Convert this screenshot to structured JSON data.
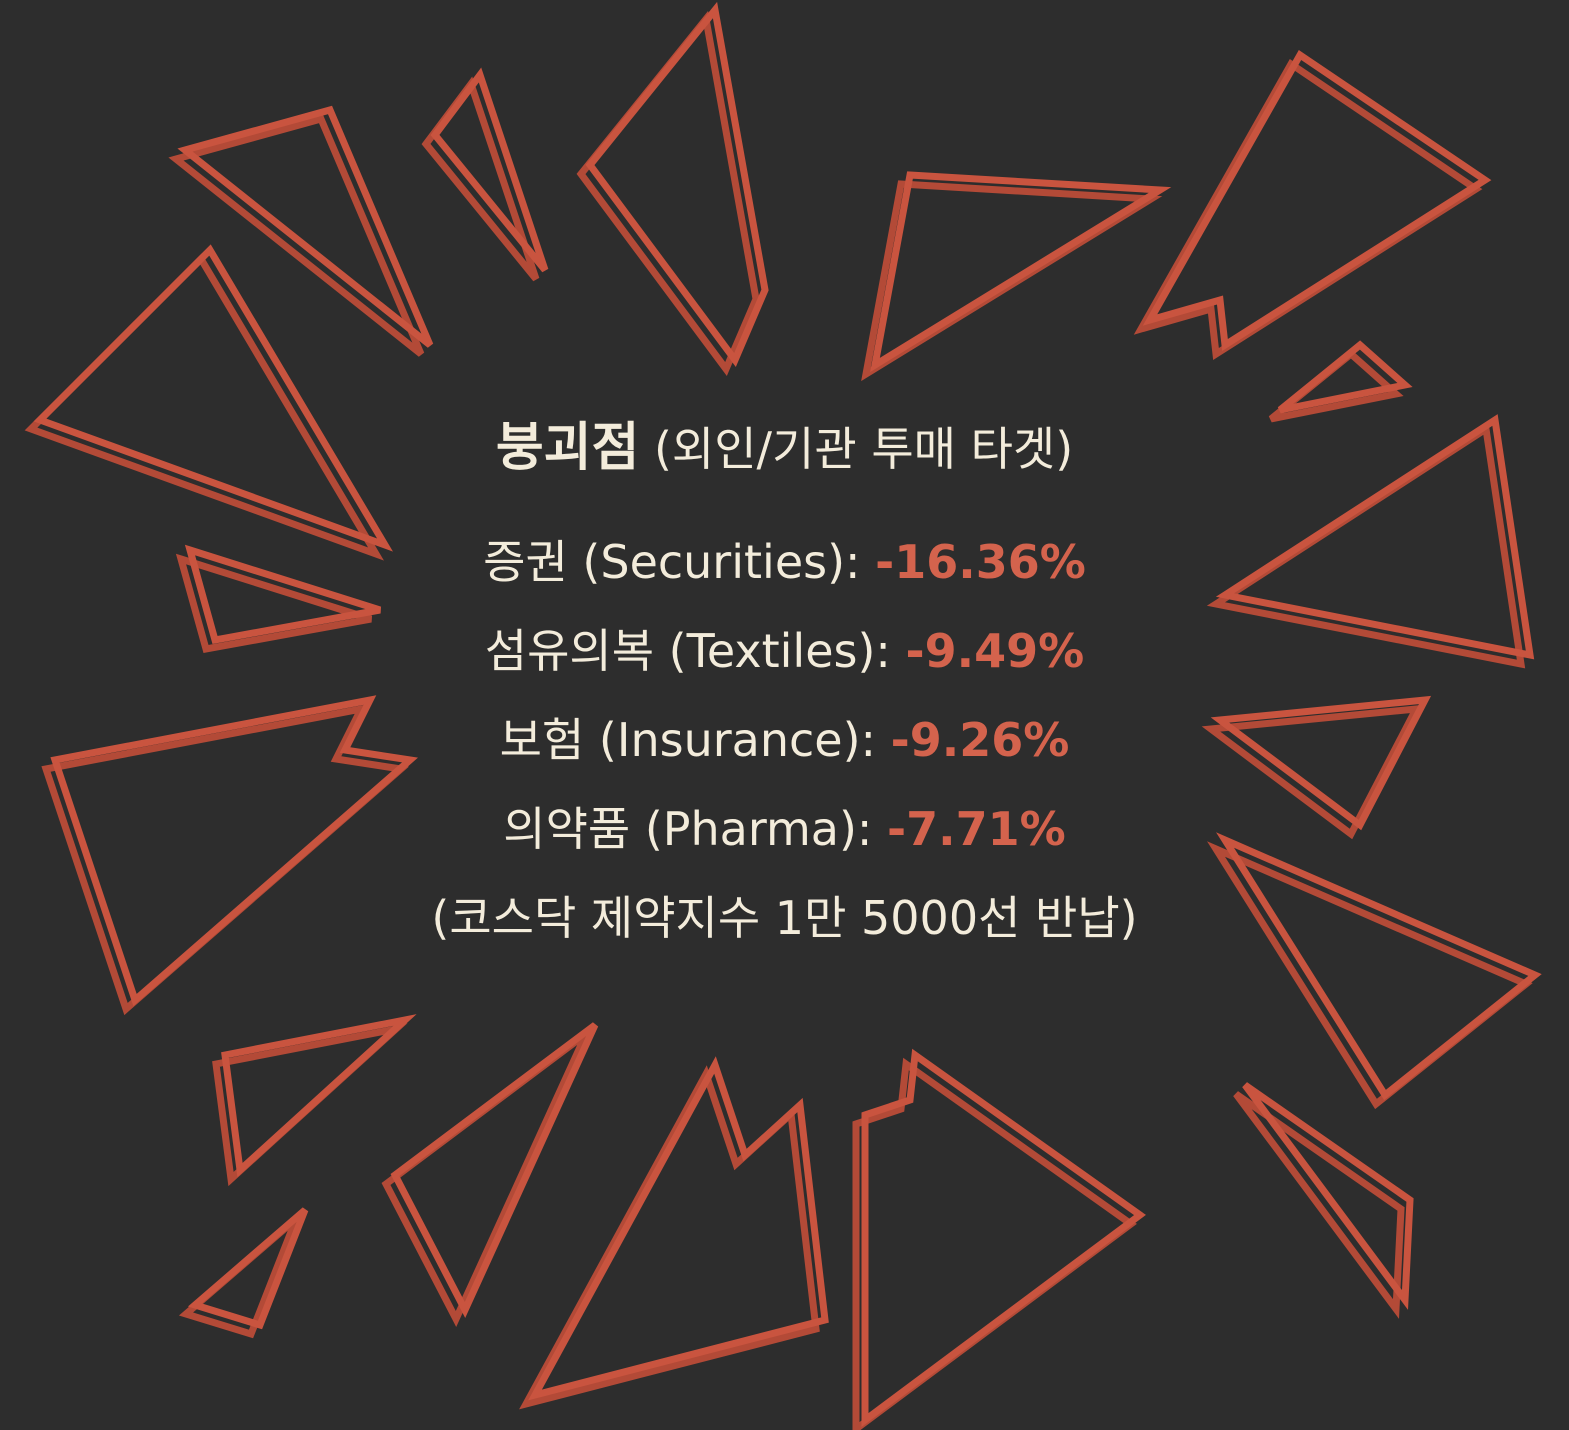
{
  "heading": {
    "title": "붕괴점",
    "subtitle": "(외인/기관 투매 타겟)"
  },
  "items": [
    {
      "label": "증권 (Securities):",
      "value": "-16.36%"
    },
    {
      "label": "섬유의복 (Textiles):",
      "value": "-9.49%"
    },
    {
      "label": "보험 (Insurance):",
      "value": "-9.26%"
    },
    {
      "label": "의약품 (Pharma):",
      "value": "-7.71%"
    }
  ],
  "note": "(코스닥 제약지수 1만 5000선 반납)"
}
